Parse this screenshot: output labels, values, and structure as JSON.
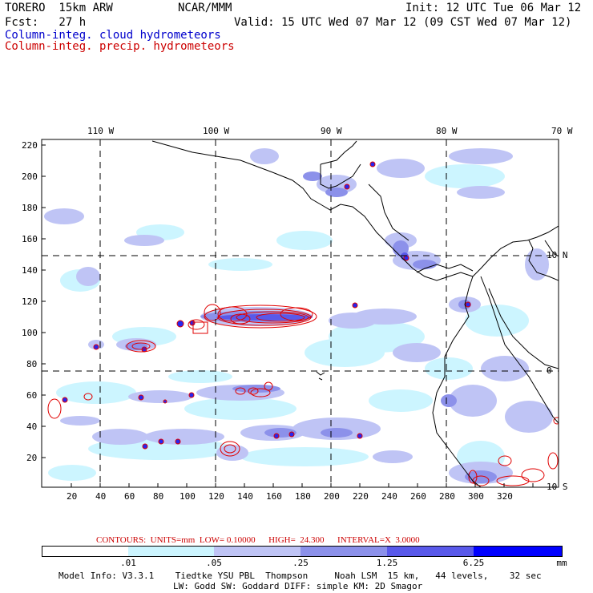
{
  "header": {
    "model": "TORERO  15km ARW",
    "org": "NCAR/MMM",
    "init": "Init: 12 UTC Tue 06 Mar 12",
    "fcst": "Fcst:   27 h",
    "valid": "Valid: 15 UTC Wed 07 Mar 12 (09 CST Wed 07 Mar 12)",
    "field1": "Column-integ. cloud hydrometeors",
    "field2": "Column-integ. precip. hydrometeors"
  },
  "axes": {
    "top_labels": [
      "110 W",
      "100 W",
      "90 W",
      "80 W",
      "70 W"
    ],
    "left_labels": [
      "220",
      "200",
      "180",
      "160",
      "140",
      "120",
      "100",
      "80",
      "60",
      "40",
      "20"
    ],
    "bottom_labels": [
      "20",
      "40",
      "60",
      "80",
      "100",
      "120",
      "140",
      "160",
      "180",
      "200",
      "220",
      "240",
      "260",
      "280",
      "300",
      "320"
    ],
    "right_labels": [
      "10 N",
      "0",
      "10 S"
    ]
  },
  "contour_info": {
    "label": "CONTOURS:  UNITS=mm  LOW= 0.10000      HIGH=  24.300      INTERVAL=X  3.0000"
  },
  "colorbar": {
    "colors": [
      "#ffffff",
      "#ccf5ff",
      "#bfc4f5",
      "#8c91ea",
      "#5959ea",
      "#2626f0",
      "#0000ff"
    ],
    "labels": [
      ".01",
      ".05",
      ".25",
      "1.25",
      "6.25"
    ],
    "units": "mm"
  },
  "footer": {
    "line1": "Model Info: V3.3.1    Tiedtke YSU PBL  Thompson     Noah LSM  15 km,   44 levels,    32 sec",
    "line2": "LW: Godd SW: Goddard DIFF: simple KM: 2D Smagor"
  }
}
